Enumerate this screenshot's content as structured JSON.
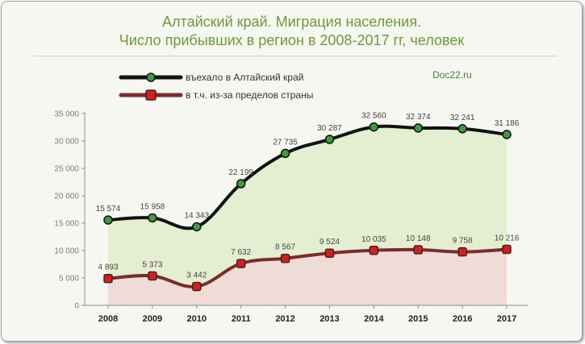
{
  "header": {
    "title_line1": "Алтайский край. Миграция населения.",
    "title_line2": "Число прибывших в регион в 2008-2017 гг, человек",
    "credit": "Doc22.ru"
  },
  "colors": {
    "series1_line": "#111111",
    "series1_marker": "#3f9b3f",
    "series1_fill": "#e4efd2",
    "series2_line": "#7a2b2b",
    "series2_marker": "#cc2222",
    "series2_fill": "#efdcd6",
    "title": "#6e9a3a"
  },
  "chart_data": {
    "type": "area",
    "title": "Алтайский край. Миграция населения. Число прибывших в регион в 2008-2017 гг, человек",
    "xlabel": "",
    "ylabel": "",
    "categories": [
      "2008",
      "2009",
      "2010",
      "2011",
      "2012",
      "2013",
      "2014",
      "2015",
      "2016",
      "2017"
    ],
    "ylim": [
      0,
      35000
    ],
    "yticks": [
      0,
      5000,
      10000,
      15000,
      20000,
      25000,
      30000,
      35000
    ],
    "ytick_labels": [
      "0",
      "5 000",
      "10 000",
      "15 000",
      "20 000",
      "25 000",
      "30 000",
      "35 000"
    ],
    "grid": false,
    "legend_position": "top-left",
    "series": [
      {
        "name": "въехало в Алтайский край",
        "values": [
          15574,
          15958,
          14343,
          22199,
          27735,
          30287,
          32560,
          32374,
          32241,
          31186
        ],
        "labels": [
          "15 574",
          "15 958",
          "14 343",
          "22 199",
          "27 735",
          "30 287",
          "32 560",
          "32 374",
          "32 241",
          "31 186"
        ]
      },
      {
        "name": "в т.ч. из-за пределов страны",
        "values": [
          4893,
          5373,
          3442,
          7632,
          8567,
          9524,
          10035,
          10148,
          9758,
          10216
        ],
        "labels": [
          "4 893",
          "5 373",
          "3 442",
          "7 632",
          "8 567",
          "9 524",
          "10 035",
          "10 148",
          "9 758",
          "10 216"
        ]
      }
    ]
  }
}
